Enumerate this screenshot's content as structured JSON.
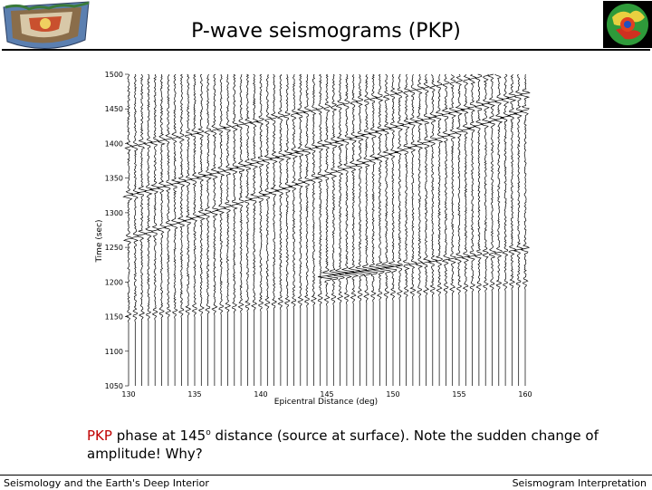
{
  "slide": {
    "title": "P-wave seismograms (PKP)"
  },
  "plot": {
    "y_axis_label": "Time (sec)",
    "x_axis_label": "Epicentral Distance (deg)",
    "x_ticks": [
      "130",
      "135",
      "140",
      "145",
      "150",
      "155",
      "160"
    ],
    "y_ticks": [
      "1500",
      "1450",
      "1400",
      "1350",
      "1300",
      "1250",
      "1200",
      "1150",
      "1100",
      "1050"
    ],
    "x_range": [
      130,
      160
    ],
    "y_range": [
      1050,
      1500
    ]
  },
  "caption": {
    "highlight": "PKP",
    "text_before_sup": " phase at 145",
    "sup": "o",
    "text_after_sup": " distance (source at surface). Note the sudden  change of amplitude! Why?"
  },
  "footer": {
    "left": "Seismology and the Earth's Deep Interior",
    "right": "Seismogram Interpretation"
  },
  "colors": {
    "highlight": "#c00000"
  }
}
